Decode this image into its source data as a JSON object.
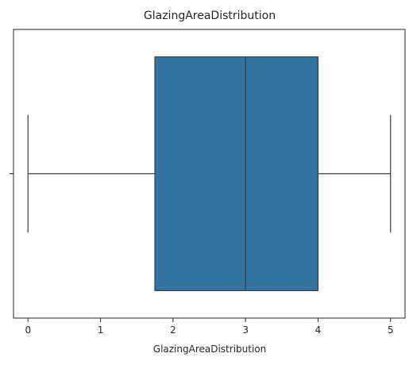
{
  "chart_data": {
    "type": "box",
    "title": "GlazingAreaDistribution",
    "xlabel": "GlazingAreaDistribution",
    "ylabel": "",
    "xlim": [
      -0.2,
      5.2
    ],
    "x_ticks": [
      0,
      1,
      2,
      3,
      4,
      5
    ],
    "y_ticks": [
      ""
    ],
    "grid": false,
    "orientation": "horizontal",
    "box": {
      "min": 0,
      "q1": 1.75,
      "median": 3,
      "q3": 4,
      "max": 5
    },
    "colors": {
      "box_fill": "#3274a1",
      "line": "#3d3d3d",
      "axis": "#262626"
    }
  }
}
